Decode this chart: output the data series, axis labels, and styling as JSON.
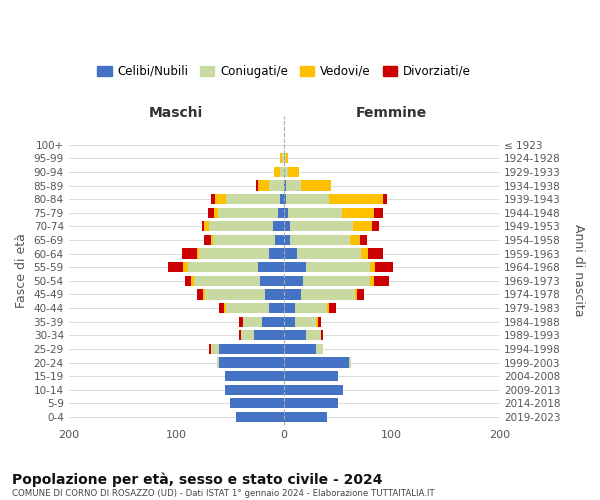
{
  "age_groups": [
    "0-4",
    "5-9",
    "10-14",
    "15-19",
    "20-24",
    "25-29",
    "30-34",
    "35-39",
    "40-44",
    "45-49",
    "50-54",
    "55-59",
    "60-64",
    "65-69",
    "70-74",
    "75-79",
    "80-84",
    "85-89",
    "90-94",
    "95-99",
    "100+"
  ],
  "birth_years": [
    "2019-2023",
    "2014-2018",
    "2009-2013",
    "2004-2008",
    "1999-2003",
    "1994-1998",
    "1989-1993",
    "1984-1988",
    "1979-1983",
    "1974-1978",
    "1969-1973",
    "1964-1968",
    "1959-1963",
    "1954-1958",
    "1949-1953",
    "1944-1948",
    "1939-1943",
    "1934-1938",
    "1929-1933",
    "1924-1928",
    "≤ 1923"
  ],
  "maschi": {
    "celibi": [
      45,
      50,
      55,
      55,
      60,
      60,
      28,
      20,
      14,
      18,
      22,
      24,
      14,
      8,
      10,
      6,
      4,
      0,
      0,
      0,
      0
    ],
    "coniugati": [
      0,
      0,
      0,
      0,
      2,
      8,
      12,
      18,
      40,
      55,
      62,
      65,
      65,
      58,
      60,
      55,
      50,
      14,
      4,
      2,
      0
    ],
    "vedovi": [
      0,
      0,
      0,
      0,
      0,
      0,
      0,
      0,
      2,
      2,
      2,
      5,
      2,
      2,
      4,
      4,
      10,
      10,
      5,
      2,
      0
    ],
    "divorziati": [
      0,
      0,
      0,
      0,
      0,
      2,
      2,
      4,
      4,
      6,
      6,
      14,
      14,
      6,
      2,
      6,
      4,
      2,
      0,
      0,
      0
    ]
  },
  "femmine": {
    "nubili": [
      40,
      50,
      55,
      50,
      60,
      30,
      20,
      10,
      10,
      16,
      18,
      20,
      12,
      6,
      6,
      4,
      2,
      2,
      0,
      0,
      0
    ],
    "coniugate": [
      0,
      0,
      0,
      0,
      2,
      6,
      14,
      20,
      30,
      50,
      62,
      60,
      60,
      55,
      58,
      50,
      40,
      14,
      4,
      2,
      0
    ],
    "vedove": [
      0,
      0,
      0,
      0,
      0,
      0,
      0,
      2,
      2,
      2,
      4,
      5,
      6,
      10,
      18,
      30,
      50,
      28,
      10,
      2,
      0
    ],
    "divorziate": [
      0,
      0,
      0,
      0,
      0,
      0,
      2,
      2,
      6,
      6,
      14,
      16,
      14,
      6,
      6,
      8,
      4,
      0,
      0,
      0,
      0
    ]
  },
  "colors": {
    "celibi": "#4472c4",
    "coniugati": "#c8d9a2",
    "vedovi": "#ffc000",
    "divorziati": "#cc0000"
  },
  "title": "Popolazione per età, sesso e stato civile - 2024",
  "subtitle": "COMUNE DI CORNO DI ROSAZZO (UD) - Dati ISTAT 1° gennaio 2024 - Elaborazione TUTTAITALIA.IT",
  "xlabel_left": "Maschi",
  "xlabel_right": "Femmine",
  "ylabel_left": "Fasce di età",
  "ylabel_right": "Anni di nascita",
  "xlim": 200,
  "legend_labels": [
    "Celibi/Nubili",
    "Coniugati/e",
    "Vedovi/e",
    "Divorziati/e"
  ],
  "bg_color": "#ffffff",
  "grid_color": "#cccccc",
  "bar_height": 0.75
}
